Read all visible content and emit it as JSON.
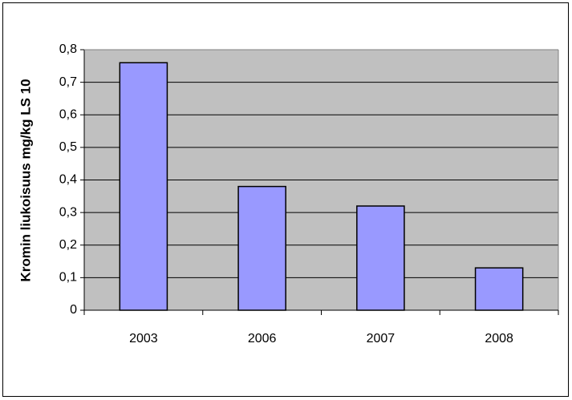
{
  "chart_data": {
    "type": "bar",
    "y_label": "Kromin liukoisuus mg/kg LS 10",
    "categories": [
      "2003",
      "2006",
      "2007",
      "2008"
    ],
    "values": [
      0.76,
      0.38,
      0.32,
      0.13
    ],
    "color": "#9999ff",
    "ylim": [
      0,
      0.8
    ],
    "yticks": [
      0,
      {
        "value": 0.1,
        "label": "0,1"
      },
      {
        "value": 0.2,
        "label": "0,2"
      },
      {
        "value": 0.3,
        "label": "0,3"
      },
      {
        "value": 0.4,
        "label": "0,4"
      },
      {
        "value": 0.5,
        "label": "0,5"
      },
      {
        "value": 0.6,
        "label": "0,6"
      },
      {
        "value": 0.7,
        "label": "0,7"
      },
      {
        "value": 0.8,
        "label": "0,8"
      }
    ],
    "grid": true
  }
}
